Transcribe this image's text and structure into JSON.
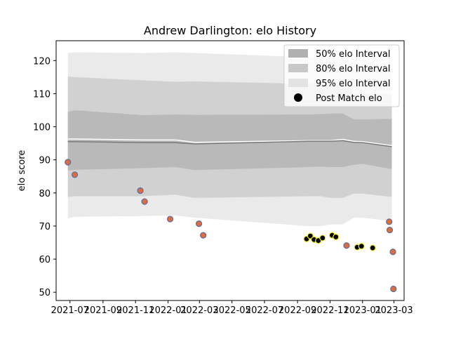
{
  "chart_data": {
    "type": "line",
    "title": "Andrew Darlington: elo History",
    "xlabel": "",
    "ylabel": "elo score",
    "x_ticks": [
      "2021-07",
      "2021-09",
      "2021-11",
      "2022-01",
      "2022-03",
      "2022-05",
      "2022-07",
      "2022-09",
      "2022-11",
      "2023-01",
      "2023-03"
    ],
    "y_ticks": [
      50,
      60,
      70,
      80,
      90,
      100,
      110,
      120
    ],
    "ylim": [
      47.5,
      126
    ],
    "xlim": [
      "2021-06-05",
      "2023-03-20"
    ],
    "grid": false,
    "legend_position": "top-right",
    "legend": [
      {
        "label": "50% elo Interval",
        "color": "#b0b0b0"
      },
      {
        "label": "80% elo Interval",
        "color": "#c8c8c8"
      },
      {
        "label": "95% elo Interval",
        "color": "#e3e3e3"
      },
      {
        "label": "Post Match elo",
        "color": "#000000"
      }
    ],
    "band_x": [
      "2021-06-27",
      "2021-07-10",
      "2021-11-15",
      "2022-01-15",
      "2022-02-20",
      "2022-09-20",
      "2022-10-15",
      "2022-11-01",
      "2022-11-25",
      "2022-12-15",
      "2023-01-01",
      "2023-02-25"
    ],
    "mean_line": [
      95.5,
      95.5,
      95.2,
      95.2,
      94.8,
      95.6,
      95.6,
      95.6,
      95.8,
      95.3,
      95.2,
      94.0
    ],
    "upper_line": [
      96.3,
      96.3,
      96.0,
      96.0,
      95.3,
      95.8,
      95.8,
      95.8,
      96.2,
      95.6,
      95.5,
      94.3
    ],
    "band_50": {
      "upper": [
        104.5,
        105.0,
        103.5,
        103.7,
        103.6,
        103.7,
        103.8,
        104.0,
        104.0,
        102.3,
        102.2,
        102.4
      ],
      "lower": [
        86.8,
        87.0,
        87.5,
        87.8,
        86.9,
        87.8,
        88.0,
        87.8,
        87.8,
        88.5,
        88.8,
        87.2
      ]
    },
    "band_80": {
      "upper": [
        115.2,
        115.0,
        114.0,
        113.6,
        113.7,
        113.0,
        113.0,
        112.8,
        112.8,
        110.0,
        110.0,
        110.0
      ],
      "lower": [
        78.8,
        79.0,
        79.0,
        79.5,
        78.5,
        79.0,
        79.0,
        78.5,
        78.5,
        79.8,
        79.8,
        78.8
      ]
    },
    "band_95": {
      "upper": [
        122.3,
        122.5,
        122.3,
        122.5,
        122.3,
        121.0,
        121.0,
        120.8,
        120.8,
        119.0,
        119.0,
        119.0
      ],
      "lower": [
        72.3,
        72.8,
        73.0,
        73.2,
        72.5,
        70.0,
        70.0,
        70.5,
        70.5,
        72.5,
        72.5,
        71.5
      ]
    },
    "series": [
      {
        "name": "Post Match elo",
        "x": [
          "2021-06-27",
          "2021-07-10",
          "2021-11-10",
          "2021-11-18",
          "2022-01-05",
          "2022-02-28",
          "2022-03-08",
          "2022-09-18",
          "2022-09-25",
          "2022-10-02",
          "2022-10-10",
          "2022-10-18",
          "2022-11-05",
          "2022-11-12",
          "2022-12-02",
          "2022-12-22",
          "2022-12-30",
          "2023-01-20",
          "2023-02-20",
          "2023-02-21",
          "2023-02-27",
          "2023-02-28"
        ],
        "values": [
          89.3,
          85.5,
          80.7,
          77.4,
          72.1,
          70.7,
          67.2,
          66.1,
          67.0,
          65.9,
          65.6,
          66.4,
          67.2,
          66.7,
          64.1,
          63.6,
          63.9,
          63.4,
          71.3,
          68.8,
          62.2,
          51.0
        ],
        "outline": [
          "#5a6e9c",
          "#5a6e9c",
          "#5a6e9c",
          "#5a6e9c",
          "#5a6e9c",
          "#5a6e9c",
          "#5a6e9c",
          "#f5ef2a",
          "#f5ef2a",
          "#f5ef2a",
          "#f5ef2a",
          "#f5ef2a",
          "#f5ef2a",
          "#f5ef2a",
          "#5a6e9c",
          "#f5ef2a",
          "#f5ef2a",
          "#f5ef2a",
          "#5a6e9c",
          "#5a6e9c",
          "#5a6e9c",
          "#5a6e9c"
        ],
        "fill": [
          "#e06c3c",
          "#e06c3c",
          "#e06c3c",
          "#e06c3c",
          "#e06c3c",
          "#e06c3c",
          "#e06c3c",
          "#000000",
          "#000000",
          "#000000",
          "#000000",
          "#000000",
          "#000000",
          "#000000",
          "#e06c3c",
          "#000000",
          "#000000",
          "#000000",
          "#e06c3c",
          "#e06c3c",
          "#e06c3c",
          "#e06c3c"
        ]
      }
    ],
    "colors": {
      "band_50": "#b0b0b0",
      "band_80": "#c8c8c8",
      "band_95": "#e3e3e3",
      "mean_line": "#7a7a7a",
      "upper_line": "#ffffff"
    }
  }
}
